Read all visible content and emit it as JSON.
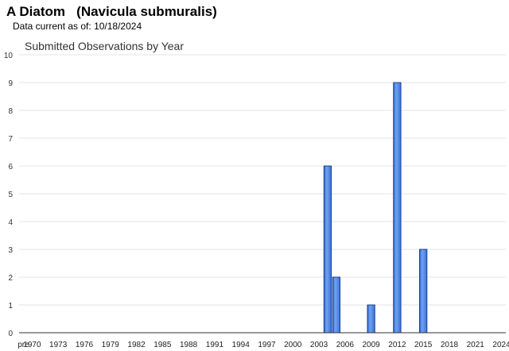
{
  "page": {
    "title": "A Diatom   (Navicula submuralis)",
    "data_current_label": "Data current as of:",
    "data_current_date": "10/18/2024"
  },
  "chart_data": {
    "type": "bar",
    "title": "Submitted Observations by Year",
    "xlabel": "",
    "ylabel": "",
    "ylim": [
      0,
      10
    ],
    "yticks": [
      0,
      1,
      2,
      3,
      4,
      5,
      6,
      7,
      8,
      9,
      10
    ],
    "grid": true,
    "categories": [
      "pre",
      "1970",
      "1971",
      "1972",
      "1973",
      "1974",
      "1975",
      "1976",
      "1977",
      "1978",
      "1979",
      "1980",
      "1981",
      "1982",
      "1983",
      "1984",
      "1985",
      "1986",
      "1987",
      "1988",
      "1989",
      "1990",
      "1991",
      "1992",
      "1993",
      "1994",
      "1995",
      "1996",
      "1997",
      "1998",
      "1999",
      "2000",
      "2001",
      "2002",
      "2003",
      "2004",
      "2005",
      "2006",
      "2007",
      "2008",
      "2009",
      "2010",
      "2011",
      "2012",
      "2013",
      "2014",
      "2015",
      "2016",
      "2017",
      "2018",
      "2019",
      "2020",
      "2021",
      "2022",
      "2023",
      "2024"
    ],
    "tick_labels": [
      "pre",
      "1970",
      "1973",
      "1976",
      "1979",
      "1982",
      "1985",
      "1988",
      "1991",
      "1994",
      "1997",
      "2000",
      "2003",
      "2006",
      "2009",
      "2012",
      "2015",
      "2018",
      "2021",
      "2024"
    ],
    "values": [
      0,
      0,
      0,
      0,
      0,
      0,
      0,
      0,
      0,
      0,
      0,
      0,
      0,
      0,
      0,
      0,
      0,
      0,
      0,
      0,
      0,
      0,
      0,
      0,
      0,
      0,
      0,
      0,
      0,
      0,
      0,
      0,
      0,
      0,
      0,
      6,
      2,
      0,
      0,
      0,
      1,
      0,
      0,
      9,
      0,
      0,
      3,
      0,
      0,
      0,
      0,
      0,
      0,
      0,
      0,
      0
    ],
    "colors": {
      "bar_fill": "#4a86e8",
      "bar_stroke": "#1a3f8f",
      "grid": "#e3e3e3",
      "axis": "#333333"
    }
  }
}
